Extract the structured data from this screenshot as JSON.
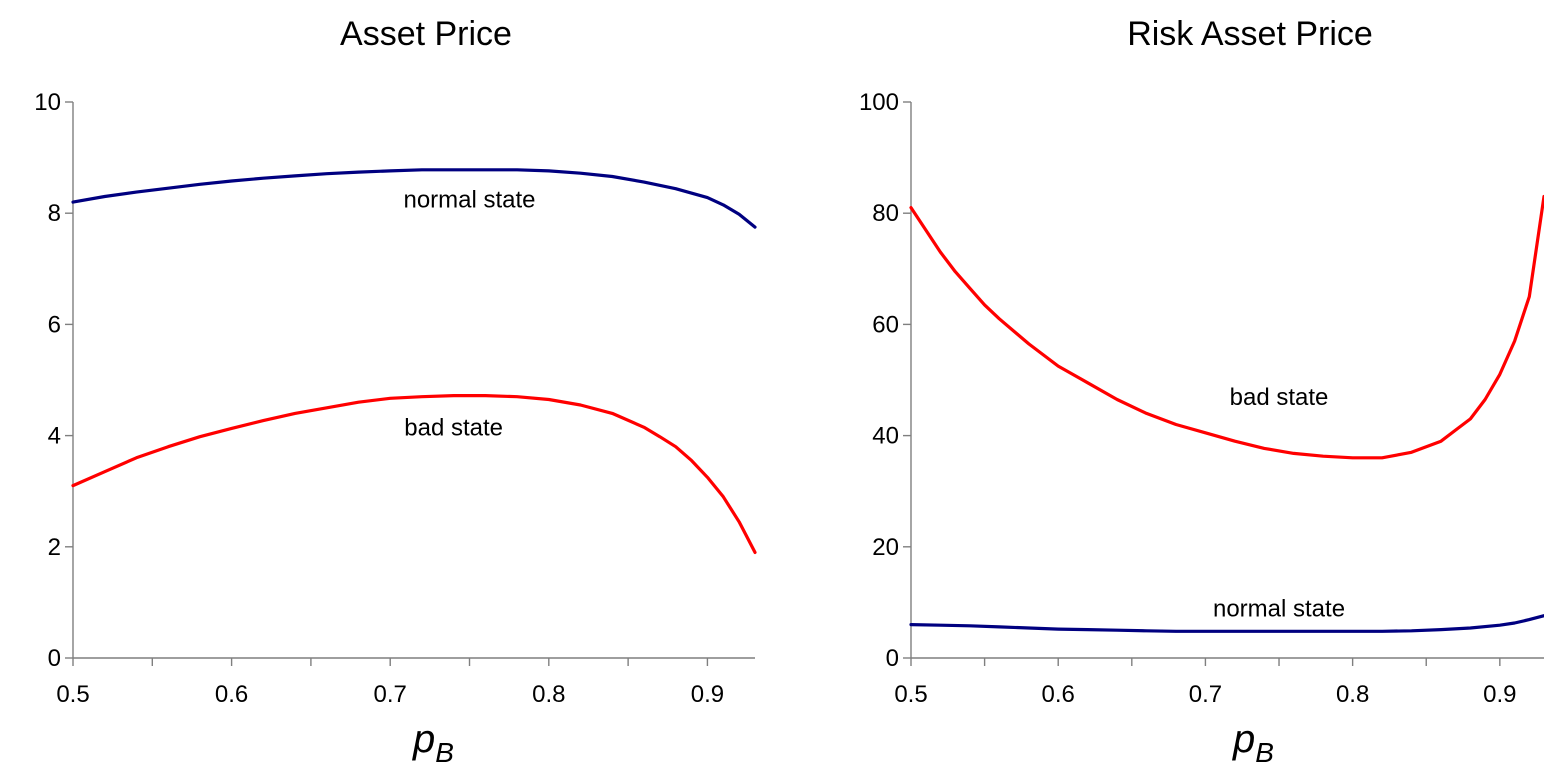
{
  "chart_data": [
    {
      "type": "line",
      "title": "Asset Price",
      "xlabel": "p",
      "xlabel_sub": "B",
      "ylabel": "",
      "xlim": [
        0.5,
        0.93
      ],
      "ylim": [
        0,
        10
      ],
      "xticks": [
        0.5,
        0.6,
        0.7,
        0.8,
        0.9
      ],
      "yticks": [
        0,
        2,
        4,
        6,
        8,
        10
      ],
      "grid": false,
      "series": [
        {
          "color": "#000080",
          "annotation": "normal state",
          "annotation_at": [
            0.75,
            8.1
          ],
          "x": [
            0.5,
            0.52,
            0.54,
            0.56,
            0.58,
            0.6,
            0.62,
            0.64,
            0.66,
            0.68,
            0.7,
            0.72,
            0.74,
            0.76,
            0.78,
            0.8,
            0.82,
            0.84,
            0.86,
            0.88,
            0.9,
            0.91,
            0.92,
            0.93
          ],
          "y": [
            8.2,
            8.3,
            8.38,
            8.45,
            8.52,
            8.58,
            8.63,
            8.67,
            8.71,
            8.74,
            8.76,
            8.78,
            8.78,
            8.78,
            8.78,
            8.76,
            8.72,
            8.66,
            8.56,
            8.44,
            8.28,
            8.15,
            7.98,
            7.75
          ]
        },
        {
          "color": "#ff0000",
          "annotation": "bad state",
          "annotation_at": [
            0.74,
            4.0
          ],
          "x": [
            0.5,
            0.52,
            0.54,
            0.56,
            0.58,
            0.6,
            0.62,
            0.64,
            0.66,
            0.68,
            0.7,
            0.72,
            0.74,
            0.76,
            0.78,
            0.8,
            0.82,
            0.84,
            0.86,
            0.87,
            0.88,
            0.89,
            0.9,
            0.91,
            0.92,
            0.93
          ],
          "y": [
            3.1,
            3.35,
            3.6,
            3.8,
            3.98,
            4.13,
            4.27,
            4.4,
            4.5,
            4.6,
            4.67,
            4.7,
            4.72,
            4.72,
            4.7,
            4.65,
            4.55,
            4.4,
            4.15,
            3.98,
            3.8,
            3.55,
            3.25,
            2.9,
            2.45,
            1.9
          ]
        }
      ]
    },
    {
      "type": "line",
      "title": "Risk Asset Price",
      "xlabel": "p",
      "xlabel_sub": "B",
      "ylabel": "",
      "xlim": [
        0.5,
        0.93
      ],
      "ylim": [
        0,
        100
      ],
      "xticks": [
        0.5,
        0.6,
        0.7,
        0.8,
        0.9
      ],
      "yticks": [
        0,
        20,
        40,
        60,
        80,
        100
      ],
      "grid": false,
      "series": [
        {
          "color": "#ff0000",
          "annotation": "bad state",
          "annotation_at": [
            0.75,
            45.5
          ],
          "x": [
            0.5,
            0.51,
            0.52,
            0.53,
            0.54,
            0.55,
            0.56,
            0.58,
            0.6,
            0.62,
            0.64,
            0.66,
            0.68,
            0.7,
            0.72,
            0.74,
            0.76,
            0.78,
            0.8,
            0.82,
            0.84,
            0.86,
            0.87,
            0.88,
            0.89,
            0.9,
            0.91,
            0.92,
            0.93
          ],
          "y": [
            81,
            77,
            73,
            69.5,
            66.5,
            63.5,
            61,
            56.5,
            52.5,
            49.5,
            46.5,
            44,
            42,
            40.5,
            39,
            37.7,
            36.8,
            36.3,
            36,
            36,
            37,
            39,
            41,
            43,
            46.5,
            51,
            57,
            65,
            83
          ]
        },
        {
          "color": "#000080",
          "annotation": "normal state",
          "annotation_at": [
            0.75,
            7.5
          ],
          "x": [
            0.5,
            0.52,
            0.54,
            0.56,
            0.58,
            0.6,
            0.62,
            0.64,
            0.66,
            0.68,
            0.7,
            0.72,
            0.74,
            0.76,
            0.78,
            0.8,
            0.82,
            0.84,
            0.86,
            0.88,
            0.9,
            0.91,
            0.92,
            0.93
          ],
          "y": [
            6.0,
            5.9,
            5.8,
            5.6,
            5.4,
            5.2,
            5.1,
            5.0,
            4.9,
            4.8,
            4.8,
            4.8,
            4.8,
            4.8,
            4.8,
            4.8,
            4.8,
            4.9,
            5.1,
            5.4,
            5.9,
            6.3,
            6.9,
            7.6
          ]
        }
      ]
    }
  ]
}
